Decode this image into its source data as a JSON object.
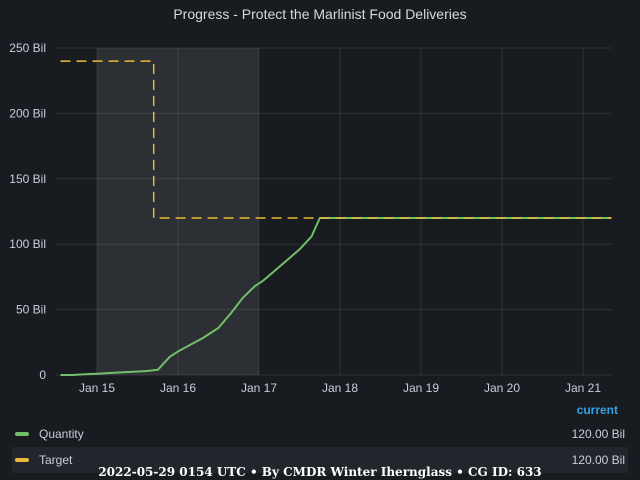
{
  "panel": {
    "title": "Progress - Protect the Marlinist Food Deliveries"
  },
  "chart_data": {
    "type": "line",
    "x_tick_labels": [
      "Jan 15",
      "Jan 16",
      "Jan 17",
      "Jan 18",
      "Jan 19",
      "Jan 20",
      "Jan 21"
    ],
    "y_tick_labels": [
      "0",
      "50 Bil",
      "100 Bil",
      "150 Bil",
      "200 Bil",
      "250 Bil"
    ],
    "y_ticks": [
      0,
      50,
      100,
      150,
      200,
      250
    ],
    "ylim": [
      0,
      250
    ],
    "x_unit": "days from Jan 15",
    "xlim": [
      -0.45,
      6.35
    ],
    "shaded_region": [
      0.0,
      2.0
    ],
    "grid": true,
    "legend_position": "bottom",
    "series": [
      {
        "name": "Quantity",
        "color": "#73bf69",
        "dash": false,
        "x": [
          -0.45,
          -0.3,
          -0.15,
          0.0,
          0.15,
          0.3,
          0.45,
          0.6,
          0.75,
          0.9,
          1.0,
          1.15,
          1.3,
          1.5,
          1.65,
          1.8,
          1.95,
          2.05,
          2.2,
          2.35,
          2.5,
          2.65,
          2.75,
          2.95,
          3.5,
          4.5,
          5.5,
          6.35
        ],
        "y": [
          0,
          0,
          0.5,
          1,
          1.5,
          2,
          2.5,
          3,
          4,
          14,
          18,
          23,
          28,
          36,
          47,
          59,
          68,
          72,
          80,
          88,
          96,
          106,
          120,
          120,
          120,
          120,
          120,
          120
        ]
      },
      {
        "name": "Target",
        "color": "#eab839",
        "dash": true,
        "x": [
          -0.45,
          0.7,
          0.7,
          6.35
        ],
        "y": [
          240,
          240,
          120,
          120
        ]
      }
    ]
  },
  "legend": {
    "header": "current",
    "items": [
      {
        "name": "Quantity",
        "value": "120.00 Bil",
        "color": "#73bf69"
      },
      {
        "name": "Target",
        "value": "120.00 Bil",
        "color": "#eab839"
      }
    ]
  },
  "footer": {
    "text": "2022-05-29 0154 UTC • By CMDR Winter Ihernglаss • CG ID: 633"
  }
}
